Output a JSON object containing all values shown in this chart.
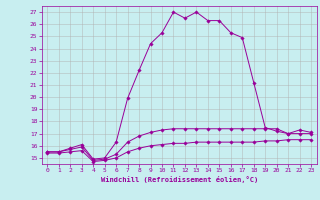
{
  "title": "",
  "xlabel": "Windchill (Refroidissement éolien,°C)",
  "background_color": "#c8eef0",
  "line_color": "#990099",
  "grid_color": "#b0b0b0",
  "hours": [
    0,
    1,
    2,
    3,
    4,
    5,
    6,
    7,
    8,
    9,
    10,
    11,
    12,
    13,
    14,
    15,
    16,
    17,
    18,
    19,
    20,
    21,
    22,
    23
  ],
  "temp": [
    15.5,
    15.5,
    15.8,
    16.1,
    14.9,
    15.0,
    16.3,
    19.9,
    22.2,
    24.4,
    25.3,
    27.0,
    26.5,
    27.0,
    26.3,
    26.3,
    25.3,
    24.9,
    21.2,
    17.5,
    17.2,
    17.0,
    17.3,
    17.1
  ],
  "windchill": [
    15.5,
    15.5,
    15.7,
    15.9,
    14.8,
    14.9,
    15.3,
    16.3,
    16.8,
    17.1,
    17.3,
    17.4,
    17.4,
    17.4,
    17.4,
    17.4,
    17.4,
    17.4,
    17.4,
    17.4,
    17.4,
    17.0,
    17.0,
    17.0
  ],
  "dewpoint": [
    15.4,
    15.4,
    15.5,
    15.6,
    14.7,
    14.8,
    15.0,
    15.5,
    15.8,
    16.0,
    16.1,
    16.2,
    16.2,
    16.3,
    16.3,
    16.3,
    16.3,
    16.3,
    16.3,
    16.4,
    16.4,
    16.5,
    16.5,
    16.5
  ],
  "ylim": [
    14.5,
    27.5
  ],
  "yticks": [
    15,
    16,
    17,
    18,
    19,
    20,
    21,
    22,
    23,
    24,
    25,
    26,
    27
  ],
  "xlim": [
    -0.5,
    23.5
  ],
  "xticks": [
    0,
    1,
    2,
    3,
    4,
    5,
    6,
    7,
    8,
    9,
    10,
    11,
    12,
    13,
    14,
    15,
    16,
    17,
    18,
    19,
    20,
    21,
    22,
    23
  ],
  "tick_fontsize": 4.5,
  "xlabel_fontsize": 5.0,
  "marker_size": 1.8,
  "line_width": 0.7
}
